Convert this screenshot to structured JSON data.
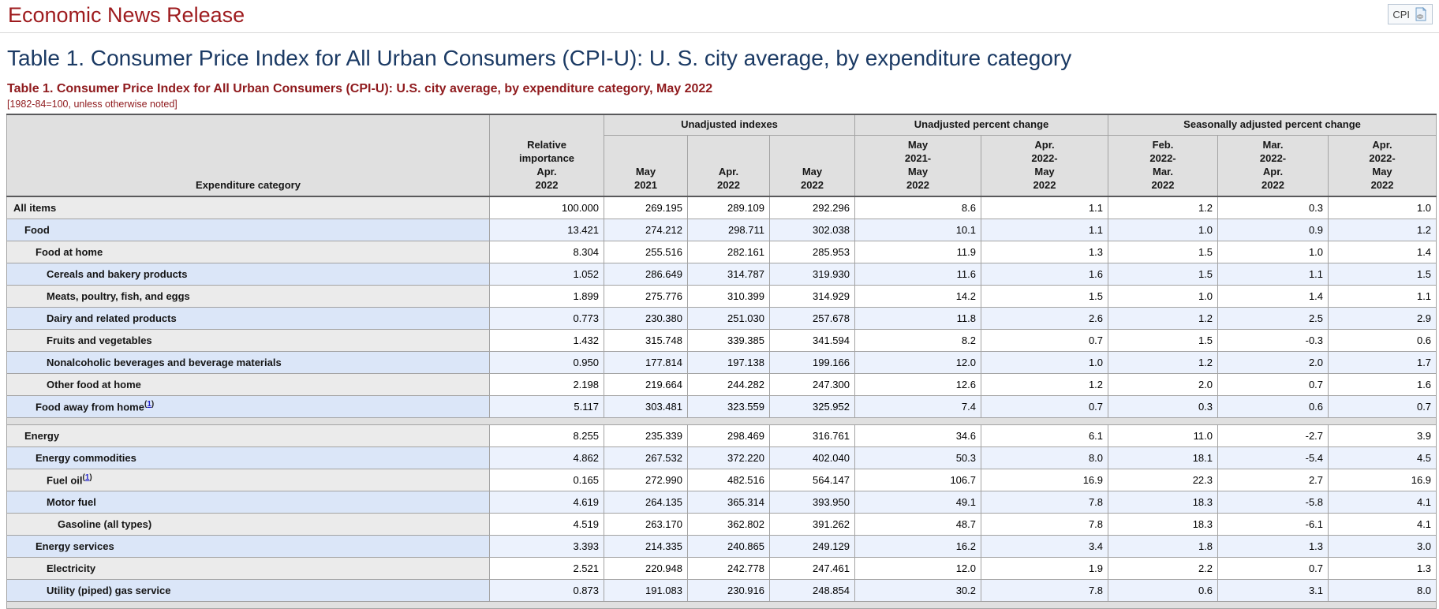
{
  "page": {
    "site_header": "Economic News Release",
    "badge": {
      "label": "CPI",
      "icon": "page-link-icon"
    },
    "main_title": "Table 1. Consumer Price Index for All Urban Consumers (CPI-U): U. S. city average, by expenditure category",
    "table_caption": "Table 1. Consumer Price Index for All Urban Consumers (CPI-U): U.S. city average, by expenditure category, May 2022",
    "table_note": "[1982-84=100, unless otherwise noted]"
  },
  "colors": {
    "heading_red": "#9e1b1e",
    "caption_red": "#8f1a1d",
    "title_navy": "#1b3a64",
    "header_gray": "#e0e0e0",
    "row_gray": "#ebebeb",
    "row_blue_category": "#dbe6f8",
    "row_blue_value": "#ecf2fd",
    "grid_border": "#a3a3a3",
    "link_blue": "#2525cc"
  },
  "table": {
    "footnote": {
      "open": "(",
      "label": "1",
      "close": ")"
    },
    "header": {
      "category": "Expenditure category",
      "relative_importance": "Relative\nimportance\nApr.\n2022",
      "groups": [
        {
          "label": "Unadjusted indexes",
          "cols": [
            "May\n2021",
            "Apr.\n2022",
            "May\n2022"
          ]
        },
        {
          "label": "Unadjusted percent change",
          "cols": [
            "May\n2021-\nMay\n2022",
            "Apr.\n2022-\nMay\n2022"
          ]
        },
        {
          "label": "Seasonally adjusted percent change",
          "cols": [
            "Feb.\n2022-\nMar.\n2022",
            "Mar.\n2022-\nApr.\n2022",
            "Apr.\n2022-\nMay\n2022"
          ]
        }
      ]
    },
    "rows": [
      {
        "label": "All items",
        "indent": 0,
        "footnote": false,
        "values": [
          "100.000",
          "269.195",
          "289.109",
          "292.296",
          "8.6",
          "1.1",
          "1.2",
          "0.3",
          "1.0"
        ]
      },
      {
        "label": "Food",
        "indent": 1,
        "footnote": false,
        "values": [
          "13.421",
          "274.212",
          "298.711",
          "302.038",
          "10.1",
          "1.1",
          "1.0",
          "0.9",
          "1.2"
        ]
      },
      {
        "label": "Food at home",
        "indent": 2,
        "footnote": false,
        "values": [
          "8.304",
          "255.516",
          "282.161",
          "285.953",
          "11.9",
          "1.3",
          "1.5",
          "1.0",
          "1.4"
        ]
      },
      {
        "label": "Cereals and bakery products",
        "indent": 3,
        "footnote": false,
        "values": [
          "1.052",
          "286.649",
          "314.787",
          "319.930",
          "11.6",
          "1.6",
          "1.5",
          "1.1",
          "1.5"
        ]
      },
      {
        "label": "Meats, poultry, fish, and eggs",
        "indent": 3,
        "footnote": false,
        "values": [
          "1.899",
          "275.776",
          "310.399",
          "314.929",
          "14.2",
          "1.5",
          "1.0",
          "1.4",
          "1.1"
        ]
      },
      {
        "label": "Dairy and related products",
        "indent": 3,
        "footnote": false,
        "values": [
          "0.773",
          "230.380",
          "251.030",
          "257.678",
          "11.8",
          "2.6",
          "1.2",
          "2.5",
          "2.9"
        ]
      },
      {
        "label": "Fruits and vegetables",
        "indent": 3,
        "footnote": false,
        "values": [
          "1.432",
          "315.748",
          "339.385",
          "341.594",
          "8.2",
          "0.7",
          "1.5",
          "-0.3",
          "0.6"
        ]
      },
      {
        "label": "Nonalcoholic beverages and beverage materials",
        "indent": 3,
        "footnote": false,
        "values": [
          "0.950",
          "177.814",
          "197.138",
          "199.166",
          "12.0",
          "1.0",
          "1.2",
          "2.0",
          "1.7"
        ]
      },
      {
        "label": "Other food at home",
        "indent": 3,
        "footnote": false,
        "values": [
          "2.198",
          "219.664",
          "244.282",
          "247.300",
          "12.6",
          "1.2",
          "2.0",
          "0.7",
          "1.6"
        ]
      },
      {
        "label": "Food away from home",
        "indent": 2,
        "footnote": true,
        "values": [
          "5.117",
          "303.481",
          "323.559",
          "325.952",
          "7.4",
          "0.7",
          "0.3",
          "0.6",
          "0.7"
        ]
      },
      {
        "type": "spacer"
      },
      {
        "label": "Energy",
        "indent": 1,
        "footnote": false,
        "values": [
          "8.255",
          "235.339",
          "298.469",
          "316.761",
          "34.6",
          "6.1",
          "11.0",
          "-2.7",
          "3.9"
        ]
      },
      {
        "label": "Energy commodities",
        "indent": 2,
        "footnote": false,
        "values": [
          "4.862",
          "267.532",
          "372.220",
          "402.040",
          "50.3",
          "8.0",
          "18.1",
          "-5.4",
          "4.5"
        ]
      },
      {
        "label": "Fuel oil",
        "indent": 3,
        "footnote": true,
        "values": [
          "0.165",
          "272.990",
          "482.516",
          "564.147",
          "106.7",
          "16.9",
          "22.3",
          "2.7",
          "16.9"
        ]
      },
      {
        "label": "Motor fuel",
        "indent": 3,
        "footnote": false,
        "values": [
          "4.619",
          "264.135",
          "365.314",
          "393.950",
          "49.1",
          "7.8",
          "18.3",
          "-5.8",
          "4.1"
        ]
      },
      {
        "label": "Gasoline (all types)",
        "indent": 4,
        "footnote": false,
        "values": [
          "4.519",
          "263.170",
          "362.802",
          "391.262",
          "48.7",
          "7.8",
          "18.3",
          "-6.1",
          "4.1"
        ]
      },
      {
        "label": "Energy services",
        "indent": 2,
        "footnote": false,
        "values": [
          "3.393",
          "214.335",
          "240.865",
          "249.129",
          "16.2",
          "3.4",
          "1.8",
          "1.3",
          "3.0"
        ]
      },
      {
        "label": "Electricity",
        "indent": 3,
        "footnote": false,
        "values": [
          "2.521",
          "220.948",
          "242.778",
          "247.461",
          "12.0",
          "1.9",
          "2.2",
          "0.7",
          "1.3"
        ]
      },
      {
        "label": "Utility (piped) gas service",
        "indent": 3,
        "footnote": false,
        "values": [
          "0.873",
          "191.083",
          "230.916",
          "248.854",
          "30.2",
          "7.8",
          "0.6",
          "3.1",
          "8.0"
        ]
      },
      {
        "type": "spacer"
      }
    ]
  }
}
